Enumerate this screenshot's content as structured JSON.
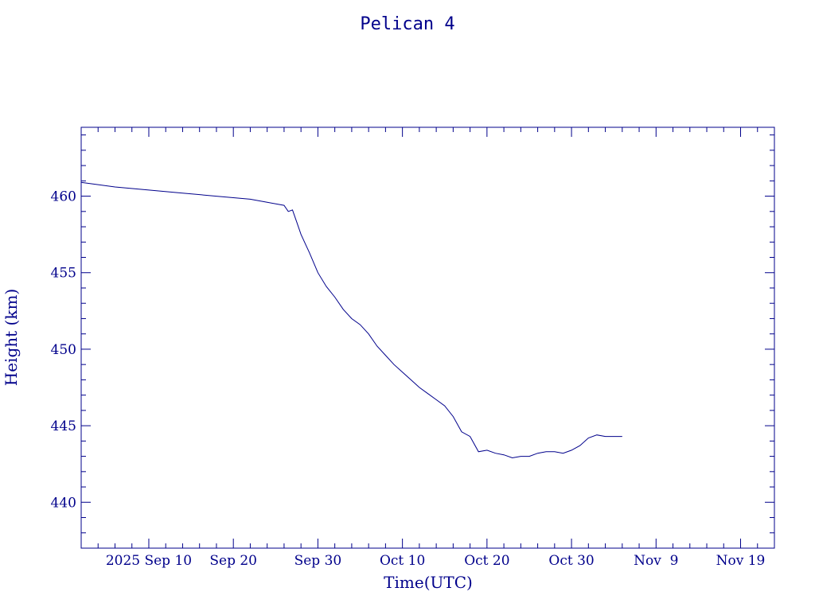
{
  "colors": {
    "ink": "#00008b",
    "background": "#ffffff"
  },
  "chart_data": {
    "type": "line",
    "title": "Pelican 4",
    "xlabel": "Time(UTC)",
    "ylabel": "Height (km)",
    "xlim": [
      "2025-09-02",
      "2025-11-23"
    ],
    "ylim": [
      437,
      464.5
    ],
    "x_ticks": [
      {
        "date": "2025-09-10",
        "label": "2025 Sep 10"
      },
      {
        "date": "2025-09-20",
        "label": "Sep 20"
      },
      {
        "date": "2025-09-30",
        "label": "Sep 30"
      },
      {
        "date": "2025-10-10",
        "label": "Oct 10"
      },
      {
        "date": "2025-10-20",
        "label": "Oct 20"
      },
      {
        "date": "2025-10-30",
        "label": "Oct 30"
      },
      {
        "date": "2025-11-09",
        "label": "Nov  9"
      },
      {
        "date": "2025-11-19",
        "label": "Nov 19"
      }
    ],
    "y_ticks": [
      440,
      445,
      450,
      455,
      460
    ],
    "grid": false,
    "series": [
      {
        "x": [
          "2025-09-02",
          "2025-09-06",
          "2025-09-10",
          "2025-09-14",
          "2025-09-18",
          "2025-09-22",
          "2025-09-24",
          "2025-09-26",
          "2025-09-26 12:00",
          "2025-09-27",
          "2025-09-27 12:00",
          "2025-09-28",
          "2025-09-29",
          "2025-09-30",
          "2025-10-01",
          "2025-10-02",
          "2025-10-03",
          "2025-10-04",
          "2025-10-05",
          "2025-10-06",
          "2025-10-07",
          "2025-10-08",
          "2025-10-09",
          "2025-10-10",
          "2025-10-11",
          "2025-10-12",
          "2025-10-13",
          "2025-10-14",
          "2025-10-15",
          "2025-10-16",
          "2025-10-17",
          "2025-10-18",
          "2025-10-19",
          "2025-10-20",
          "2025-10-21",
          "2025-10-22",
          "2025-10-23",
          "2025-10-24",
          "2025-10-25",
          "2025-10-26",
          "2025-10-27",
          "2025-10-28",
          "2025-10-29",
          "2025-10-30",
          "2025-10-31",
          "2025-11-01",
          "2025-11-02",
          "2025-11-03",
          "2025-11-04",
          "2025-11-05"
        ],
        "y": [
          460.9,
          460.6,
          460.4,
          460.2,
          460.0,
          459.8,
          459.6,
          459.4,
          459.0,
          459.1,
          458.3,
          457.5,
          456.3,
          455.0,
          454.1,
          453.4,
          452.6,
          452.0,
          451.6,
          451.0,
          450.2,
          449.6,
          449.0,
          448.5,
          448.0,
          447.5,
          447.1,
          446.7,
          446.3,
          445.6,
          444.6,
          444.3,
          443.3,
          443.4,
          443.2,
          443.1,
          442.9,
          443.0,
          443.0,
          443.2,
          443.3,
          443.3,
          443.2,
          443.4,
          443.7,
          444.2,
          444.4,
          444.3,
          444.3,
          444.3
        ]
      }
    ]
  }
}
